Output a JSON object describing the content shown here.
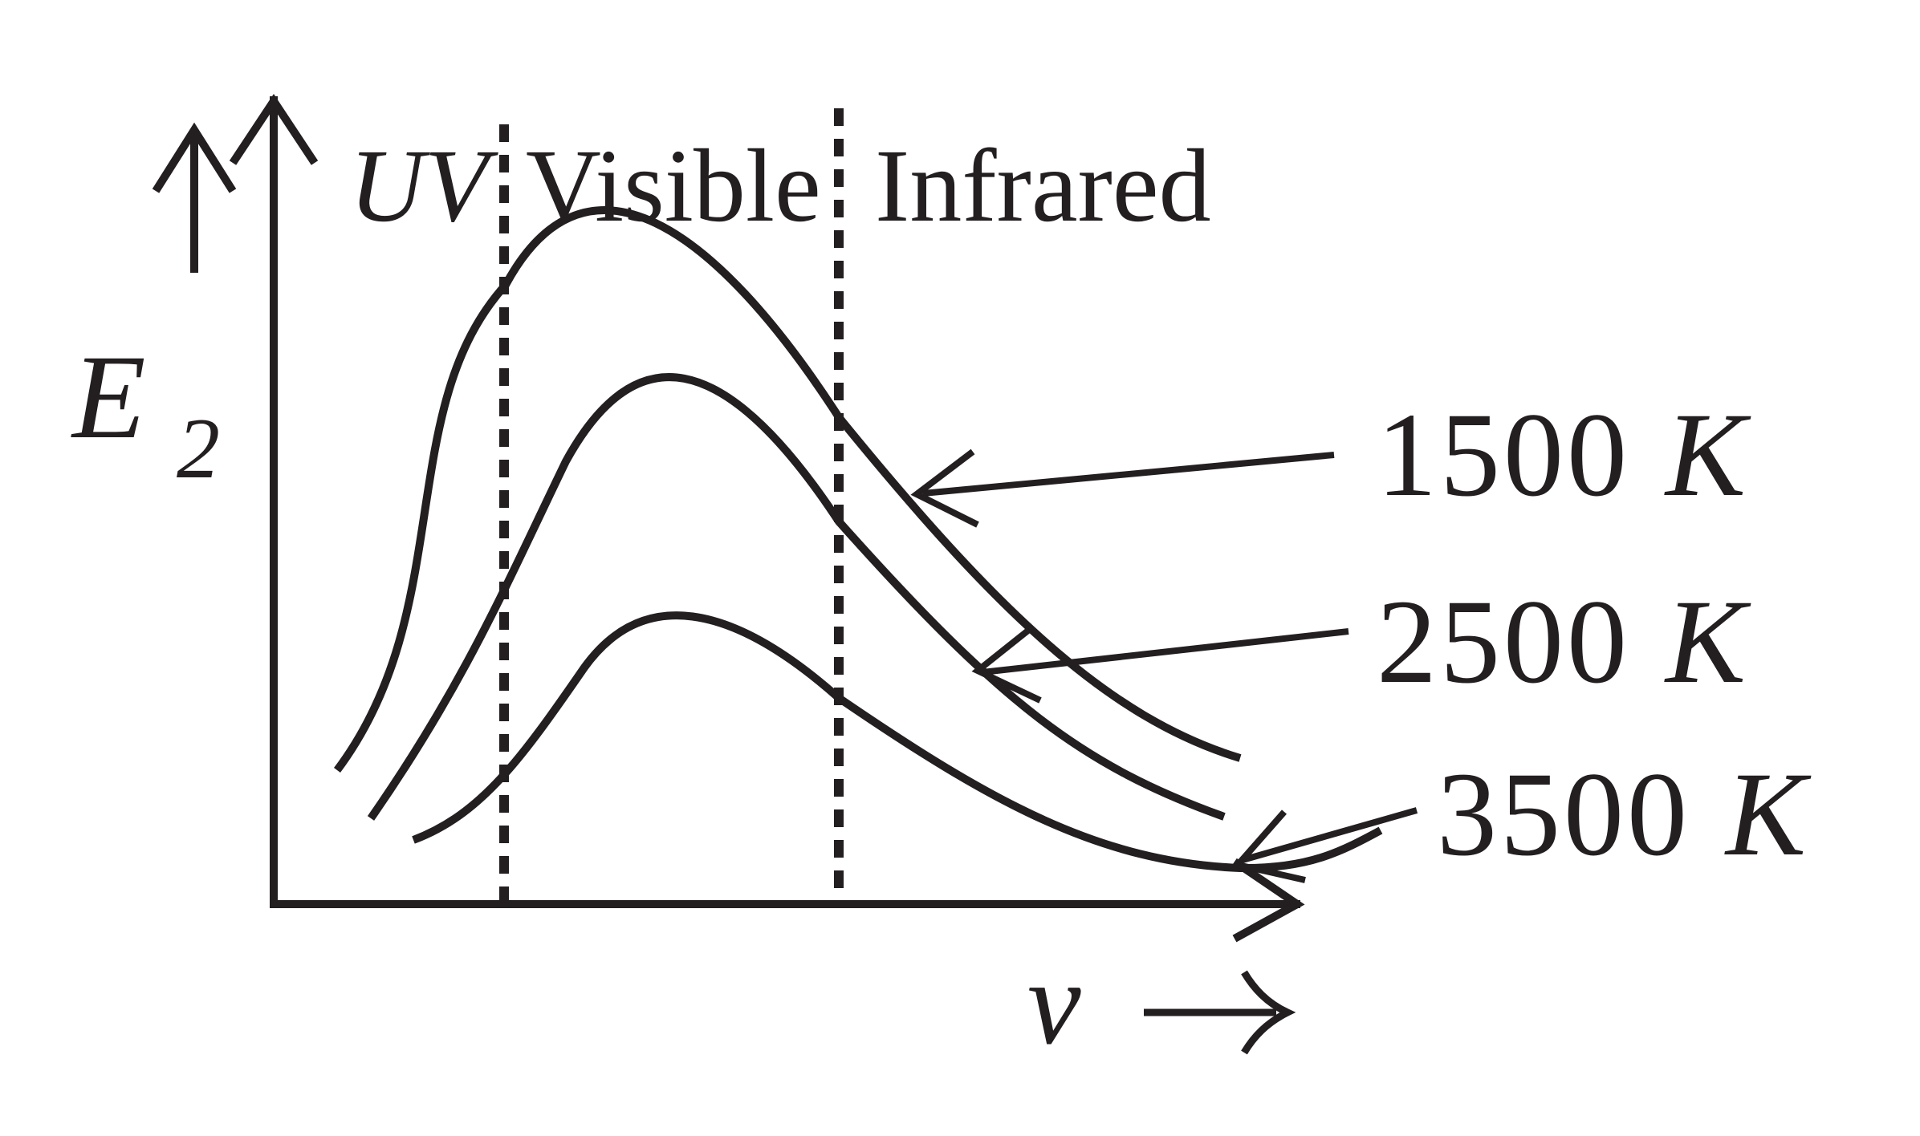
{
  "labels": {
    "y_axis_symbol": "E",
    "y_axis_subscript": "2",
    "x_axis_symbol": "v",
    "region_uv": "UV",
    "region_visible": "Visible",
    "region_infrared": "Infrared"
  },
  "curves": [
    {
      "number": "1500",
      "unit": "K"
    },
    {
      "number": "2500",
      "unit": "K"
    },
    {
      "number": "3500",
      "unit": "K"
    }
  ],
  "colors": {
    "ink": "#231f20",
    "background": "#ffffff"
  }
}
